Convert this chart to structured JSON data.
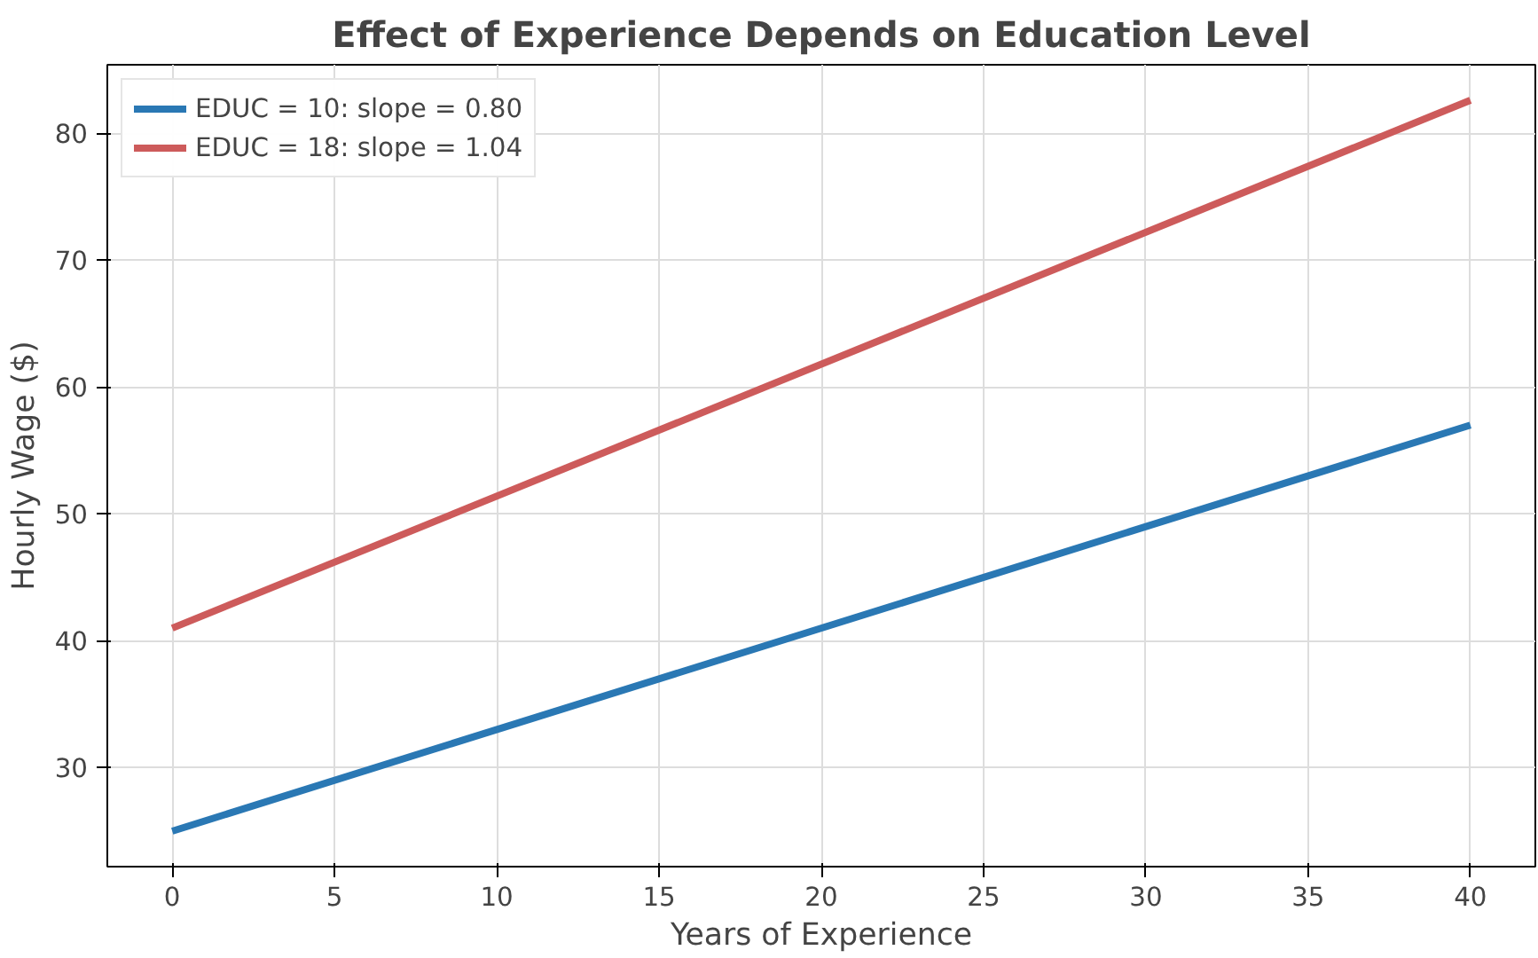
{
  "chart_data": {
    "type": "line",
    "title": "Effect of Experience Depends on Education Level",
    "xlabel": "Years of Experience",
    "ylabel": "Hourly Wage ($)",
    "x": [
      0,
      40
    ],
    "series": [
      {
        "name": "EDUC = 10: slope = 0.80",
        "color": "#2a78b4",
        "values": [
          25,
          57
        ]
      },
      {
        "name": "EDUC = 18: slope = 1.04",
        "color": "#cd5b5b",
        "values": [
          41,
          82.6
        ]
      }
    ],
    "xlim": [
      -2,
      42
    ],
    "xticks": [
      0,
      5,
      10,
      15,
      20,
      25,
      30,
      35,
      40
    ],
    "ylim": [
      22.2,
      85.4
    ],
    "yticks": [
      30,
      40,
      50,
      60,
      70,
      80
    ],
    "grid": true,
    "legend": "top left",
    "line_style": "solid"
  }
}
